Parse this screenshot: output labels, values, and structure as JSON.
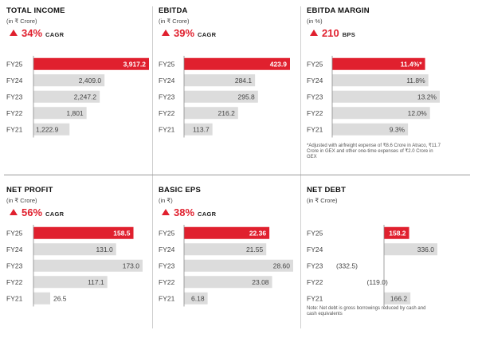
{
  "chart_data": [
    {
      "type": "bar",
      "title": "TOTAL INCOME",
      "unit": "(in ₹ Crore)",
      "growth": {
        "value": "34%",
        "suffix": "CAGR"
      },
      "categories": [
        "FY25",
        "FY24",
        "FY23",
        "FY22",
        "FY21"
      ],
      "values": [
        3917.2,
        2409.0,
        2247.2,
        1801,
        1222.9
      ],
      "labels": [
        "3,917.2",
        "2,409.0",
        "2,247.2",
        "1,801",
        "1,222.9"
      ],
      "xlim": [
        0,
        3917.2
      ],
      "highlight_color": "#e0202e",
      "bar_color": "#dcdcdc"
    },
    {
      "type": "bar",
      "title": "EBITDA",
      "unit": "(in ₹ Crore)",
      "growth": {
        "value": "39%",
        "suffix": "CAGR"
      },
      "categories": [
        "FY25",
        "FY24",
        "FY23",
        "FY22",
        "FY21"
      ],
      "values": [
        423.9,
        284.1,
        295.8,
        216.2,
        113.7
      ],
      "labels": [
        "423.9",
        "284.1",
        "295.8",
        "216.2",
        "113.7"
      ],
      "xlim": [
        0,
        423.9
      ],
      "highlight_color": "#e0202e",
      "bar_color": "#dcdcdc"
    },
    {
      "type": "bar",
      "title": "EBITDA MARGIN",
      "unit": "(in %)",
      "growth": {
        "value": "210",
        "suffix": "BPS"
      },
      "categories": [
        "FY25",
        "FY24",
        "FY23",
        "FY22",
        "FY21"
      ],
      "values": [
        11.4,
        11.8,
        13.2,
        12.0,
        9.3
      ],
      "labels": [
        "11.4%*",
        "11.8%",
        "13.2%",
        "12.0%",
        "9.3%"
      ],
      "xlim": [
        0,
        13.2
      ],
      "note": "*Adjusted with airfreight expense of ₹8.6 Crore in Atraco, ₹11.7 Crore in GEX and other one-time expenses of ₹2.0 Crore in GEX",
      "highlight_color": "#e0202e",
      "bar_color": "#dcdcdc"
    },
    {
      "type": "bar",
      "title": "NET PROFIT",
      "unit": "(in ₹ Crore)",
      "growth": {
        "value": "56%",
        "suffix": "CAGR"
      },
      "categories": [
        "FY25",
        "FY24",
        "FY23",
        "FY22",
        "FY21"
      ],
      "values": [
        158.5,
        131.0,
        173.0,
        117.1,
        26.5
      ],
      "labels": [
        "158.5",
        "131.0",
        "173.0",
        "117.1",
        "26.5"
      ],
      "xlim": [
        0,
        173.0
      ],
      "highlight_color": "#e0202e",
      "bar_color": "#dcdcdc"
    },
    {
      "type": "bar",
      "title": "BASIC EPS",
      "unit": "(in ₹)",
      "growth": {
        "value": "38%",
        "suffix": "CAGR"
      },
      "categories": [
        "FY25",
        "FY24",
        "FY23",
        "FY22",
        "FY21"
      ],
      "values": [
        22.36,
        21.55,
        28.6,
        23.08,
        6.18
      ],
      "labels": [
        "22.36",
        "21.55",
        "28.60",
        "23.08",
        "6.18"
      ],
      "xlim": [
        0,
        28.6
      ],
      "highlight_color": "#e0202e",
      "bar_color": "#dcdcdc"
    },
    {
      "type": "bar",
      "title": "NET DEBT",
      "unit": "(in ₹ Crore)",
      "categories": [
        "FY25",
        "FY24",
        "FY23",
        "FY22",
        "FY21"
      ],
      "values": [
        158.2,
        336.0,
        -332.5,
        -119.0,
        166.2
      ],
      "labels": [
        "158.2",
        "336.0",
        "(332.5)",
        "(119.0)",
        "166.2"
      ],
      "xlim": [
        -332.5,
        336.0
      ],
      "note": "Note: Net debt is gross borrowings reduced by cash and cash equivalents",
      "highlight_color": "#e0202e",
      "bar_color": "#dcdcdc"
    }
  ]
}
